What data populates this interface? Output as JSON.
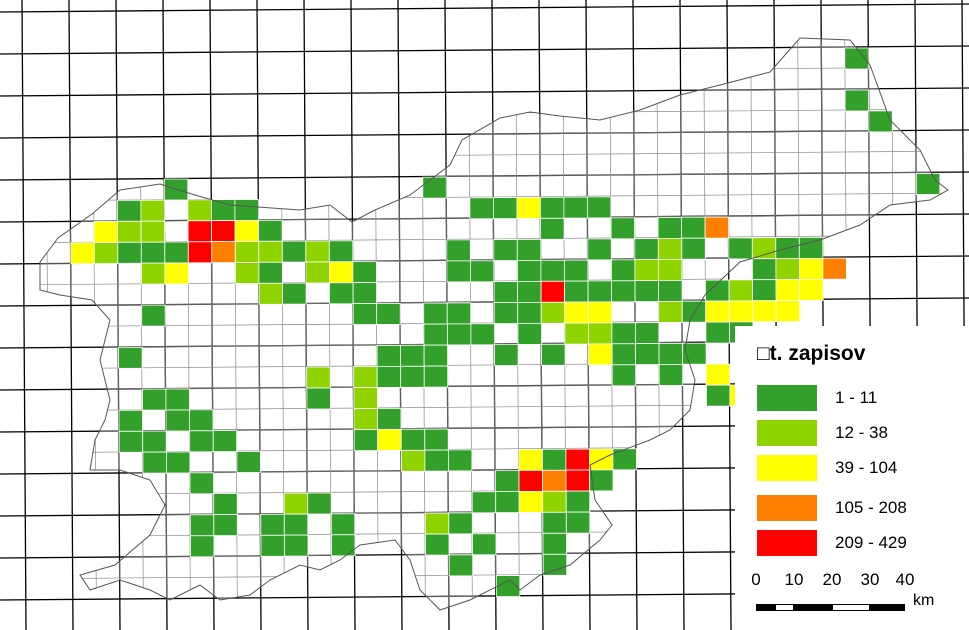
{
  "legend": {
    "title": "□t. zapisov",
    "classes": [
      {
        "label": "1 - 11",
        "color": "#33a02c"
      },
      {
        "label": "12 - 38",
        "color": "#8fd400"
      },
      {
        "label": "39 - 104",
        "color": "#ffff00"
      },
      {
        "label": "105 - 208",
        "color": "#ff8000"
      },
      {
        "label": "209 - 429",
        "color": "#ff0000"
      }
    ]
  },
  "scalebar": {
    "ticks": [
      "0",
      "10",
      "20",
      "30",
      "40"
    ],
    "unit": "km"
  },
  "map": {
    "region": "Slovenia",
    "grid_colors": {
      "line": "#000000",
      "cell_outline": "#808080",
      "empty": "#ffffff"
    }
  }
}
